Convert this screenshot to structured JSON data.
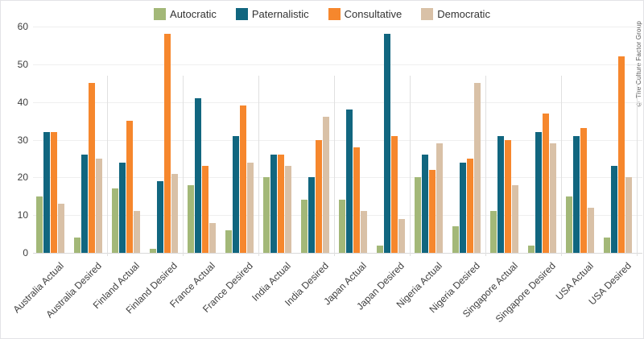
{
  "chart_data": {
    "type": "bar",
    "title": "",
    "xlabel": "",
    "ylabel": "",
    "ylim": [
      0,
      60
    ],
    "yticks": [
      0,
      10,
      20,
      30,
      40,
      50,
      60
    ],
    "grid": true,
    "legend_position": "top",
    "watermark": "© The Culture Factor Group",
    "categories": [
      "Australia Actual",
      "Australia Desired",
      "Finland Actual",
      "Finland Desired",
      "France Actual",
      "France Desired",
      "India Actual",
      "India Desired",
      "Japan Actual",
      "Japan Desired",
      "Nigeria Actual",
      "Nigeria Desired",
      "Singapore Actual",
      "Singapore Desired",
      "USA Actual",
      "USA Desired"
    ],
    "series": [
      {
        "name": "Autocratic",
        "color": "#A3B878",
        "values": [
          15,
          4,
          17,
          1,
          18,
          6,
          20,
          14,
          14,
          2,
          20,
          7,
          11,
          2,
          15,
          4
        ]
      },
      {
        "name": "Paternalistic",
        "color": "#11667F",
        "values": [
          32,
          26,
          24,
          19,
          41,
          31,
          26,
          20,
          38,
          58,
          26,
          24,
          31,
          32,
          31,
          23
        ]
      },
      {
        "name": "Consultative",
        "color": "#F6872D",
        "values": [
          32,
          45,
          35,
          58,
          23,
          39,
          26,
          30,
          28,
          31,
          22,
          25,
          30,
          37,
          33,
          52
        ]
      },
      {
        "name": "Democratic",
        "color": "#D9C1A7",
        "values": [
          13,
          25,
          11,
          21,
          8,
          24,
          23,
          36,
          11,
          9,
          29,
          45,
          18,
          29,
          12,
          20
        ]
      }
    ]
  }
}
